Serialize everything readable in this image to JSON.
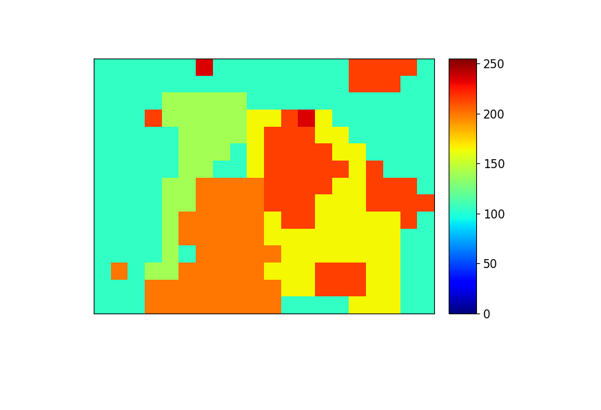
{
  "chart_data": {
    "type": "heatmap",
    "color": "jet",
    "tick_labels": false,
    "cells": [
      [
        105,
        105,
        105,
        105,
        105,
        105,
        235,
        105,
        105,
        105,
        105,
        105,
        105,
        105,
        105,
        215,
        215,
        215,
        215,
        105
      ],
      [
        105,
        105,
        105,
        105,
        105,
        105,
        105,
        105,
        105,
        105,
        105,
        105,
        105,
        105,
        105,
        215,
        215,
        215,
        105,
        105
      ],
      [
        105,
        105,
        105,
        105,
        140,
        140,
        140,
        140,
        140,
        105,
        105,
        105,
        105,
        105,
        105,
        105,
        105,
        105,
        105,
        105
      ],
      [
        105,
        105,
        105,
        215,
        140,
        140,
        140,
        140,
        140,
        165,
        165,
        215,
        235,
        165,
        105,
        105,
        105,
        105,
        105,
        105
      ],
      [
        105,
        105,
        105,
        105,
        105,
        140,
        140,
        140,
        140,
        165,
        215,
        215,
        215,
        165,
        165,
        105,
        105,
        105,
        105,
        105
      ],
      [
        105,
        105,
        105,
        105,
        105,
        140,
        140,
        140,
        105,
        165,
        215,
        215,
        215,
        215,
        165,
        165,
        105,
        105,
        105,
        105
      ],
      [
        105,
        105,
        105,
        105,
        105,
        140,
        140,
        105,
        105,
        165,
        215,
        215,
        215,
        215,
        215,
        165,
        215,
        105,
        105,
        105
      ],
      [
        105,
        105,
        105,
        105,
        140,
        140,
        200,
        200,
        200,
        200,
        215,
        215,
        215,
        215,
        165,
        165,
        215,
        215,
        215,
        105
      ],
      [
        105,
        105,
        105,
        105,
        140,
        140,
        200,
        200,
        200,
        200,
        215,
        215,
        215,
        165,
        165,
        165,
        215,
        215,
        215,
        215
      ],
      [
        105,
        105,
        105,
        105,
        140,
        200,
        200,
        200,
        200,
        200,
        165,
        215,
        215,
        165,
        165,
        165,
        165,
        165,
        215,
        105
      ],
      [
        105,
        105,
        105,
        105,
        140,
        200,
        200,
        200,
        200,
        200,
        165,
        165,
        165,
        165,
        165,
        165,
        165,
        165,
        105,
        105
      ],
      [
        105,
        105,
        105,
        105,
        140,
        105,
        200,
        200,
        200,
        200,
        200,
        165,
        165,
        165,
        165,
        165,
        165,
        165,
        105,
        105
      ],
      [
        105,
        200,
        105,
        140,
        140,
        200,
        200,
        200,
        200,
        200,
        165,
        165,
        165,
        215,
        215,
        215,
        165,
        165,
        105,
        105
      ],
      [
        105,
        105,
        105,
        200,
        200,
        200,
        200,
        200,
        200,
        200,
        200,
        165,
        165,
        215,
        215,
        215,
        165,
        165,
        105,
        105
      ],
      [
        105,
        105,
        105,
        200,
        200,
        200,
        200,
        200,
        200,
        200,
        200,
        105,
        105,
        105,
        105,
        165,
        165,
        165,
        105,
        105
      ]
    ],
    "colorbar_range": [
      0,
      255
    ],
    "colorbar_ticks": [
      0,
      50,
      100,
      150,
      200,
      250
    ]
  }
}
